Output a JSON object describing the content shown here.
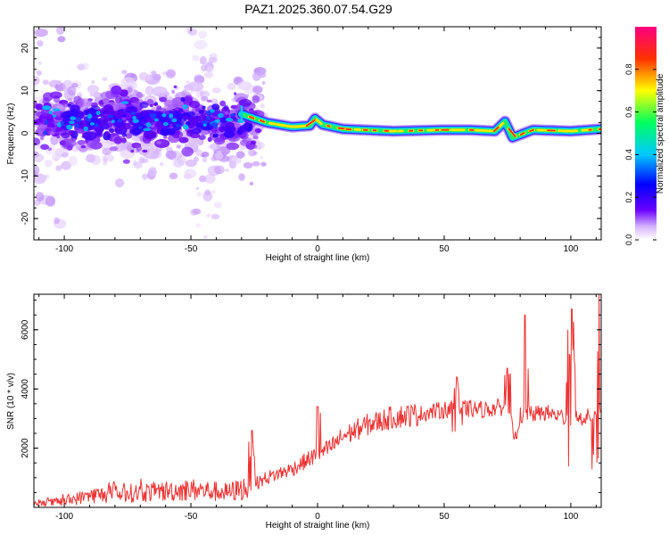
{
  "title": "PAZ1.2025.360.07.54.G29",
  "chart_data": [
    {
      "type": "heatmap",
      "xlabel": "Height of straight line (km)",
      "ylabel": "Frequency (Hz)",
      "xlim": [
        -112,
        112
      ],
      "ylim": [
        -25,
        25
      ],
      "xticks": [
        -100,
        -50,
        0,
        50,
        100
      ],
      "xtick_labels": [
        "-100",
        "-50",
        "0",
        "50",
        "100"
      ],
      "yticks": [
        -20,
        -10,
        0,
        10,
        20
      ],
      "ytick_labels": [
        "-20",
        "-10",
        "0",
        "10",
        "20"
      ],
      "description_data": {
        "ridge_frequency_hz": [
          {
            "x": -30,
            "y": 4.5
          },
          {
            "x": -25,
            "y": 3.5
          },
          {
            "x": -20,
            "y": 2.5
          },
          {
            "x": -10,
            "y": 1.5
          },
          {
            "x": -3,
            "y": 1.8
          },
          {
            "x": -1,
            "y": 3.5
          },
          {
            "x": 2,
            "y": 2.0
          },
          {
            "x": 10,
            "y": 1.0
          },
          {
            "x": 30,
            "y": 0.5
          },
          {
            "x": 50,
            "y": 0.8
          },
          {
            "x": 60,
            "y": 0.8
          },
          {
            "x": 70,
            "y": 0.5
          },
          {
            "x": 74,
            "y": 2.8
          },
          {
            "x": 77,
            "y": -1.0
          },
          {
            "x": 85,
            "y": 0.8
          },
          {
            "x": 100,
            "y": 0.5
          },
          {
            "x": 112,
            "y": 1.0
          }
        ],
        "scatter_region_x": [
          -112,
          -27
        ],
        "scatter_region_center_hz": 3
      }
    },
    {
      "type": "colorbar",
      "label": "Normalized spectral amplitude",
      "range": [
        0,
        1
      ],
      "ticks": [
        0.0,
        0.2,
        0.4,
        0.6,
        0.8
      ],
      "tick_labels": [
        "0.0",
        "0.2",
        "0.4",
        "0.6",
        "0.8"
      ],
      "colormap": [
        "#ffffff",
        "#6a00ff",
        "#0000ff",
        "#00c8ff",
        "#00ff60",
        "#ffff00",
        "#ff3000",
        "#ff0080"
      ]
    },
    {
      "type": "line",
      "xlabel": "Height of straight line (km)",
      "ylabel": "SNR (10 * v/v)",
      "xlim": [
        -112,
        112
      ],
      "ylim": [
        0,
        7200
      ],
      "xticks": [
        -100,
        -50,
        0,
        50,
        100
      ],
      "xtick_labels": [
        "-100",
        "-50",
        "0",
        "50",
        "100"
      ],
      "yticks": [
        2000,
        4000,
        6000
      ],
      "ytick_labels": [
        "2000",
        "4000",
        "6000"
      ],
      "color": "#ee3333",
      "series_trend": [
        {
          "x": -112,
          "y": 100
        },
        {
          "x": -100,
          "y": 200
        },
        {
          "x": -90,
          "y": 400
        },
        {
          "x": -70,
          "y": 500
        },
        {
          "x": -50,
          "y": 600
        },
        {
          "x": -35,
          "y": 500
        },
        {
          "x": -27,
          "y": 700
        },
        {
          "x": -20,
          "y": 1000
        },
        {
          "x": -10,
          "y": 1300
        },
        {
          "x": 0,
          "y": 1800
        },
        {
          "x": 5,
          "y": 2000
        },
        {
          "x": 10,
          "y": 2400
        },
        {
          "x": 20,
          "y": 2800
        },
        {
          "x": 30,
          "y": 3050
        },
        {
          "x": 40,
          "y": 3150
        },
        {
          "x": 50,
          "y": 3300
        },
        {
          "x": 55,
          "y": 3350
        },
        {
          "x": 65,
          "y": 3300
        },
        {
          "x": 75,
          "y": 3400
        },
        {
          "x": 78,
          "y": 2300
        },
        {
          "x": 80,
          "y": 3100
        },
        {
          "x": 90,
          "y": 3200
        },
        {
          "x": 100,
          "y": 3000
        },
        {
          "x": 112,
          "y": 3100
        }
      ],
      "spikes": [
        {
          "x": -26,
          "y": 2600
        },
        {
          "x": 0,
          "y": 3400
        },
        {
          "x": 55,
          "y": 4400
        },
        {
          "x": 75,
          "y": 4700
        },
        {
          "x": 82,
          "y": 6500
        },
        {
          "x": 99,
          "y": 6000
        },
        {
          "x": 100.5,
          "y": 6700
        },
        {
          "x": 111,
          "y": 7200
        }
      ]
    }
  ]
}
